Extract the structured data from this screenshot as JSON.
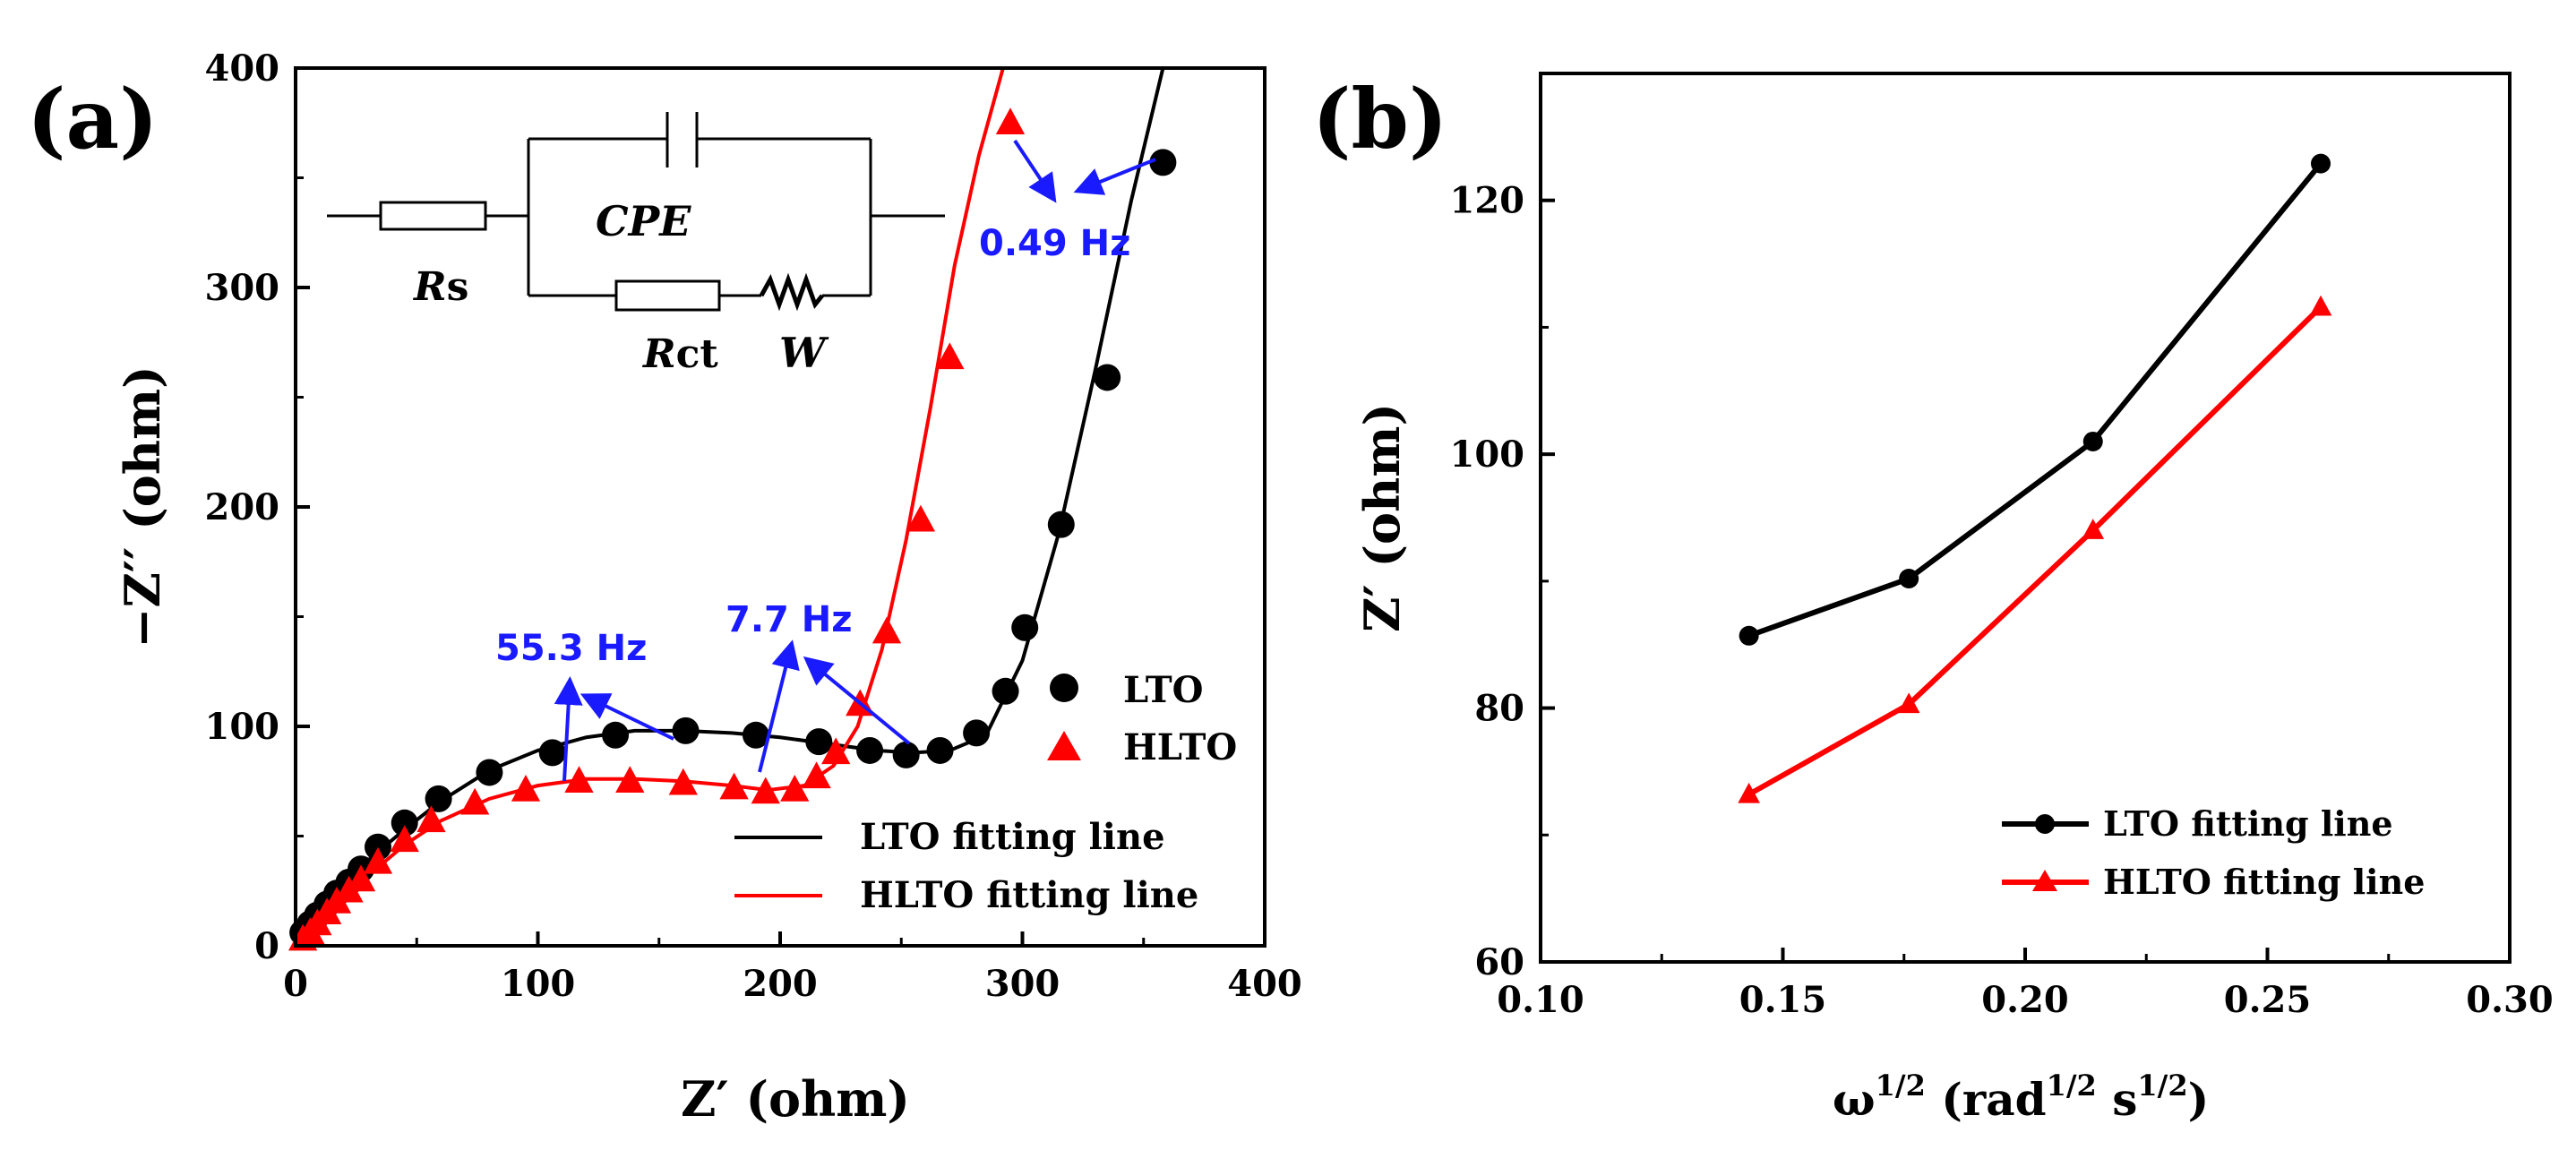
{
  "colors": {
    "lto": "#000000",
    "hlto": "#ff0000",
    "annotation": "#1a1aff",
    "axis": "#000000"
  },
  "chart_data": [
    {
      "panel_label": "(a)",
      "type": "scatter",
      "xlabel": "Z′ (ohm)",
      "ylabel": "−Z′′ (ohm)",
      "xlim": [
        0,
        400
      ],
      "ylim": [
        0,
        400
      ],
      "xticks": [
        0,
        100,
        200,
        300,
        400
      ],
      "yticks": [
        0,
        100,
        200,
        300,
        400
      ],
      "series": [
        {
          "name": "LTO",
          "kind": "points",
          "marker": "circle",
          "color": "#000000",
          "x": [
            3,
            6,
            9,
            13,
            17,
            22,
            27,
            34,
            45,
            59,
            80,
            106,
            132,
            161,
            190,
            216,
            237,
            252,
            266,
            281,
            293,
            301,
            316,
            335,
            358
          ],
          "y": [
            6,
            10,
            14,
            19,
            24,
            29,
            35,
            45,
            56,
            67,
            79,
            88,
            96,
            98,
            96,
            93,
            89,
            87,
            89,
            97,
            116,
            145,
            192,
            259,
            357
          ]
        },
        {
          "name": "HLTO",
          "kind": "points",
          "marker": "triangle",
          "color": "#ff0000",
          "x": [
            3,
            6,
            9,
            13,
            17,
            22,
            27,
            34,
            45,
            56,
            74,
            95,
            117,
            138,
            160,
            181,
            194,
            206,
            215,
            223,
            233,
            244,
            258,
            270,
            295
          ],
          "y": [
            3,
            6,
            10,
            15,
            20,
            25,
            30,
            38,
            48,
            57,
            65,
            71,
            75,
            75,
            74,
            72,
            70,
            71,
            77,
            88,
            110,
            143,
            194,
            268,
            375
          ]
        },
        {
          "name": "LTO fitting line",
          "kind": "line",
          "color": "#000000",
          "x": [
            0,
            5,
            10,
            20,
            30,
            45,
            60,
            80,
            100,
            120,
            140,
            160,
            180,
            200,
            220,
            240,
            255,
            270,
            285,
            300,
            315,
            330,
            345,
            358
          ],
          "y": [
            0,
            9,
            16,
            28,
            39,
            53,
            66,
            80,
            89,
            95,
            98,
            98,
            97,
            95,
            92,
            89,
            88,
            89,
            96,
            130,
            188,
            262,
            340,
            400
          ]
        },
        {
          "name": "HLTO fitting line",
          "kind": "line",
          "color": "#ff0000",
          "x": [
            0,
            5,
            10,
            20,
            30,
            45,
            60,
            80,
            100,
            120,
            140,
            160,
            180,
            195,
            210,
            222,
            232,
            242,
            252,
            262,
            272,
            282,
            292
          ],
          "y": [
            0,
            6,
            12,
            22,
            32,
            46,
            57,
            67,
            73,
            76,
            76,
            75,
            73,
            71,
            73,
            82,
            100,
            135,
            185,
            245,
            310,
            360,
            400
          ]
        }
      ],
      "legend": {
        "position": "right-middle",
        "entries": [
          "LTO",
          "HLTO",
          "LTO fitting line",
          "HLTO fitting line"
        ]
      },
      "annotations": [
        "55.3 Hz",
        "7.7 Hz",
        "0.49 Hz"
      ],
      "inset_circuit": {
        "labels": {
          "rs": "R",
          "rs_sub": "s",
          "cpe": "CPE",
          "rct": "R",
          "rct_sub": "ct",
          "w": "W"
        }
      }
    },
    {
      "panel_label": "(b)",
      "type": "line",
      "xlabel_base": "ω",
      "xlabel_sup": "1/2",
      "xlabel_mid1": " (rad",
      "xlabel_mid1_sup": "1/2",
      "xlabel_mid2": " s",
      "xlabel_mid2_sup": "1/2",
      "xlabel_end": ")",
      "ylabel": "Z′ (ohm)",
      "xlim": [
        0.1,
        0.3
      ],
      "ylim": [
        60,
        130
      ],
      "xticks": [
        0.1,
        0.15,
        0.2,
        0.25,
        0.3
      ],
      "xtick_labels": [
        "0.10",
        "0.15",
        "0.20",
        "0.25",
        "0.30"
      ],
      "yticks": [
        60,
        80,
        100,
        120
      ],
      "x": [
        0.143,
        0.176,
        0.214,
        0.261
      ],
      "series": [
        {
          "name": "LTO fitting line",
          "marker": "circle",
          "color": "#000000",
          "values": [
            85.7,
            90.2,
            101.0,
            122.9
          ]
        },
        {
          "name": "HLTO fitting line",
          "marker": "triangle",
          "color": "#ff0000",
          "values": [
            73.2,
            80.3,
            94.0,
            111.6
          ]
        }
      ],
      "legend": {
        "position": "bottom-right",
        "entries": [
          "LTO fitting line",
          "HLTO fitting line"
        ]
      }
    }
  ]
}
